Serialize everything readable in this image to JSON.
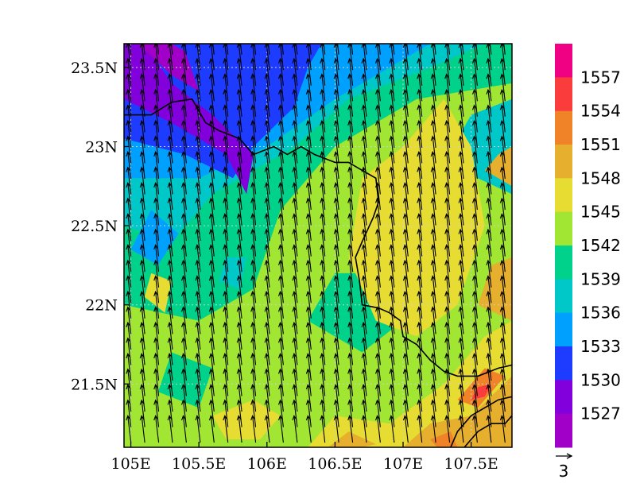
{
  "chart_data": {
    "type": "heatmap",
    "title": "",
    "xlabel": "",
    "ylabel": "",
    "xlim": [
      104.95,
      107.8
    ],
    "ylim": [
      21.1,
      23.65
    ],
    "x_ticks": [
      {
        "value": 105.0,
        "label": "105E"
      },
      {
        "value": 105.5,
        "label": "105.5E"
      },
      {
        "value": 106.0,
        "label": "106E"
      },
      {
        "value": 106.5,
        "label": "106.5E"
      },
      {
        "value": 107.0,
        "label": "107E"
      },
      {
        "value": 107.5,
        "label": "107.5E"
      }
    ],
    "y_ticks": [
      {
        "value": 23.5,
        "label": "23.5N"
      },
      {
        "value": 23.0,
        "label": "23N"
      },
      {
        "value": 22.5,
        "label": "22.5N"
      },
      {
        "value": 22.0,
        "label": "22N"
      },
      {
        "value": 21.5,
        "label": "21.5N"
      }
    ],
    "colorbar": {
      "colors": [
        "#a000c8",
        "#8200dc",
        "#1e3cff",
        "#00a0ff",
        "#00c8c8",
        "#00d28c",
        "#a0e632",
        "#e6dc32",
        "#e6af2d",
        "#f08228",
        "#fa3c3c",
        "#f00082"
      ],
      "labels": [
        "1527",
        "1530",
        "1533",
        "1536",
        "1539",
        "1542",
        "1545",
        "1548",
        "1551",
        "1554",
        "1557"
      ]
    },
    "field_regions": [
      {
        "level": 6,
        "poly": [
          [
            104.95,
            21.1
          ],
          [
            107.8,
            21.1
          ],
          [
            107.8,
            23.65
          ],
          [
            104.95,
            23.65
          ]
        ]
      },
      {
        "level": 5,
        "poly": [
          [
            104.95,
            22.0
          ],
          [
            105.5,
            21.9
          ],
          [
            105.9,
            22.1
          ],
          [
            106.1,
            22.6
          ],
          [
            106.5,
            23.0
          ],
          [
            107.1,
            23.3
          ],
          [
            107.8,
            23.4
          ],
          [
            107.8,
            23.65
          ],
          [
            104.95,
            23.65
          ]
        ]
      },
      {
        "level": 5,
        "poly": [
          [
            106.3,
            21.9
          ],
          [
            106.7,
            21.7
          ],
          [
            107.0,
            21.9
          ],
          [
            106.9,
            22.2
          ],
          [
            106.5,
            22.2
          ]
        ]
      },
      {
        "level": 5,
        "poly": [
          [
            105.2,
            21.45
          ],
          [
            105.5,
            21.35
          ],
          [
            105.6,
            21.6
          ],
          [
            105.3,
            21.7
          ]
        ]
      },
      {
        "level": 4,
        "poly": [
          [
            104.95,
            22.5
          ],
          [
            105.3,
            22.4
          ],
          [
            105.6,
            22.7
          ],
          [
            106.2,
            23.0
          ],
          [
            106.6,
            23.3
          ],
          [
            107.2,
            23.5
          ],
          [
            107.6,
            23.65
          ],
          [
            104.95,
            23.65
          ]
        ]
      },
      {
        "level": 4,
        "poly": [
          [
            107.3,
            22.9
          ],
          [
            107.8,
            22.7
          ],
          [
            107.8,
            23.3
          ],
          [
            107.5,
            23.2
          ]
        ]
      },
      {
        "level": 3,
        "poly": [
          [
            104.95,
            22.8
          ],
          [
            105.5,
            22.8
          ],
          [
            106.0,
            23.0
          ],
          [
            106.5,
            23.3
          ],
          [
            107.0,
            23.55
          ],
          [
            107.2,
            23.65
          ],
          [
            104.95,
            23.65
          ]
        ]
      },
      {
        "level": 3,
        "poly": [
          [
            105.0,
            22.35
          ],
          [
            105.2,
            22.25
          ],
          [
            105.35,
            22.45
          ],
          [
            105.15,
            22.6
          ]
        ]
      },
      {
        "level": 2,
        "poly": [
          [
            104.95,
            23.05
          ],
          [
            105.4,
            22.95
          ],
          [
            105.75,
            22.8
          ],
          [
            105.9,
            23.0
          ],
          [
            106.2,
            23.25
          ],
          [
            106.3,
            23.5
          ],
          [
            106.4,
            23.65
          ],
          [
            104.95,
            23.65
          ]
        ]
      },
      {
        "level": 1,
        "poly": [
          [
            104.95,
            23.3
          ],
          [
            105.3,
            23.15
          ],
          [
            105.7,
            22.95
          ],
          [
            105.85,
            22.7
          ],
          [
            105.9,
            22.95
          ],
          [
            105.6,
            23.2
          ],
          [
            105.3,
            23.4
          ],
          [
            105.1,
            23.65
          ],
          [
            104.95,
            23.65
          ]
        ]
      },
      {
        "level": 0,
        "poly": [
          [
            105.05,
            23.65
          ],
          [
            105.3,
            23.45
          ],
          [
            105.5,
            23.35
          ],
          [
            105.4,
            23.6
          ],
          [
            105.3,
            23.65
          ]
        ]
      },
      {
        "level": 7,
        "poly": [
          [
            106.6,
            22.3
          ],
          [
            106.8,
            21.9
          ],
          [
            107.1,
            21.8
          ],
          [
            107.4,
            22.0
          ],
          [
            107.6,
            22.5
          ],
          [
            107.5,
            23.0
          ],
          [
            107.3,
            23.3
          ],
          [
            107.0,
            23.0
          ],
          [
            106.7,
            22.8
          ]
        ]
      },
      {
        "level": 7,
        "poly": [
          [
            106.3,
            21.1
          ],
          [
            106.5,
            21.3
          ],
          [
            106.9,
            21.25
          ],
          [
            107.3,
            21.5
          ],
          [
            107.6,
            21.8
          ],
          [
            107.8,
            21.9
          ],
          [
            107.8,
            21.1
          ]
        ]
      },
      {
        "level": 7,
        "poly": [
          [
            105.6,
            21.3
          ],
          [
            105.9,
            21.4
          ],
          [
            106.1,
            21.3
          ],
          [
            105.95,
            21.15
          ],
          [
            105.7,
            21.15
          ]
        ]
      },
      {
        "level": 7,
        "poly": [
          [
            105.1,
            22.05
          ],
          [
            105.25,
            21.95
          ],
          [
            105.3,
            22.15
          ],
          [
            105.15,
            22.2
          ]
        ]
      },
      {
        "level": 8,
        "poly": [
          [
            106.45,
            21.1
          ],
          [
            106.6,
            21.2
          ],
          [
            106.8,
            21.12
          ],
          [
            106.7,
            21.1
          ]
        ]
      },
      {
        "level": 8,
        "poly": [
          [
            107.0,
            21.1
          ],
          [
            107.2,
            21.25
          ],
          [
            107.5,
            21.3
          ],
          [
            107.8,
            21.55
          ],
          [
            107.8,
            21.1
          ]
        ]
      },
      {
        "level": 8,
        "poly": [
          [
            107.55,
            22.0
          ],
          [
            107.8,
            21.9
          ],
          [
            107.8,
            22.3
          ],
          [
            107.65,
            22.25
          ]
        ]
      },
      {
        "level": 8,
        "poly": [
          [
            107.6,
            22.85
          ],
          [
            107.8,
            22.75
          ],
          [
            107.8,
            23.0
          ],
          [
            107.7,
            22.95
          ]
        ]
      },
      {
        "level": 9,
        "poly": [
          [
            107.4,
            21.4
          ],
          [
            107.55,
            21.35
          ],
          [
            107.75,
            21.55
          ],
          [
            107.6,
            21.6
          ]
        ]
      },
      {
        "level": 9,
        "poly": [
          [
            107.2,
            21.15
          ],
          [
            107.35,
            21.2
          ],
          [
            107.4,
            21.1
          ],
          [
            107.25,
            21.1
          ]
        ]
      },
      {
        "level": 10,
        "poly": [
          [
            107.5,
            21.4
          ],
          [
            107.6,
            21.42
          ],
          [
            107.65,
            21.5
          ],
          [
            107.55,
            21.48
          ]
        ]
      },
      {
        "level": 4,
        "poly": [
          [
            105.65,
            22.15
          ],
          [
            105.8,
            22.1
          ],
          [
            105.85,
            22.3
          ],
          [
            105.7,
            22.3
          ]
        ]
      }
    ],
    "borders": [
      [
        [
          104.95,
          23.2
        ],
        [
          105.15,
          23.2
        ],
        [
          105.3,
          23.28
        ],
        [
          105.45,
          23.3
        ],
        [
          105.55,
          23.15
        ],
        [
          105.65,
          23.1
        ],
        [
          105.8,
          23.05
        ],
        [
          105.9,
          22.95
        ],
        [
          106.05,
          23.0
        ],
        [
          106.15,
          22.95
        ],
        [
          106.25,
          23.0
        ],
        [
          106.35,
          22.95
        ],
        [
          106.5,
          22.9
        ],
        [
          106.6,
          22.9
        ],
        [
          106.7,
          22.85
        ],
        [
          106.8,
          22.8
        ],
        [
          106.82,
          22.65
        ],
        [
          106.78,
          22.55
        ],
        [
          106.7,
          22.4
        ],
        [
          106.65,
          22.3
        ],
        [
          106.68,
          22.15
        ],
        [
          106.7,
          22.0
        ],
        [
          106.82,
          21.98
        ],
        [
          106.9,
          21.95
        ],
        [
          106.98,
          21.9
        ],
        [
          107.0,
          21.8
        ],
        [
          107.1,
          21.75
        ],
        [
          107.2,
          21.65
        ],
        [
          107.3,
          21.58
        ],
        [
          107.4,
          21.55
        ],
        [
          107.55,
          21.55
        ],
        [
          107.7,
          21.6
        ],
        [
          107.8,
          21.62
        ]
      ],
      [
        [
          107.35,
          21.1
        ],
        [
          107.4,
          21.2
        ],
        [
          107.5,
          21.3
        ],
        [
          107.6,
          21.35
        ],
        [
          107.7,
          21.4
        ],
        [
          107.8,
          21.42
        ]
      ],
      [
        [
          107.45,
          21.1
        ],
        [
          107.55,
          21.2
        ],
        [
          107.65,
          21.25
        ],
        [
          107.75,
          21.25
        ],
        [
          107.8,
          21.3
        ]
      ]
    ],
    "wind": {
      "u": -0.35,
      "v": 3.0,
      "reference_vector_label": "3"
    }
  }
}
